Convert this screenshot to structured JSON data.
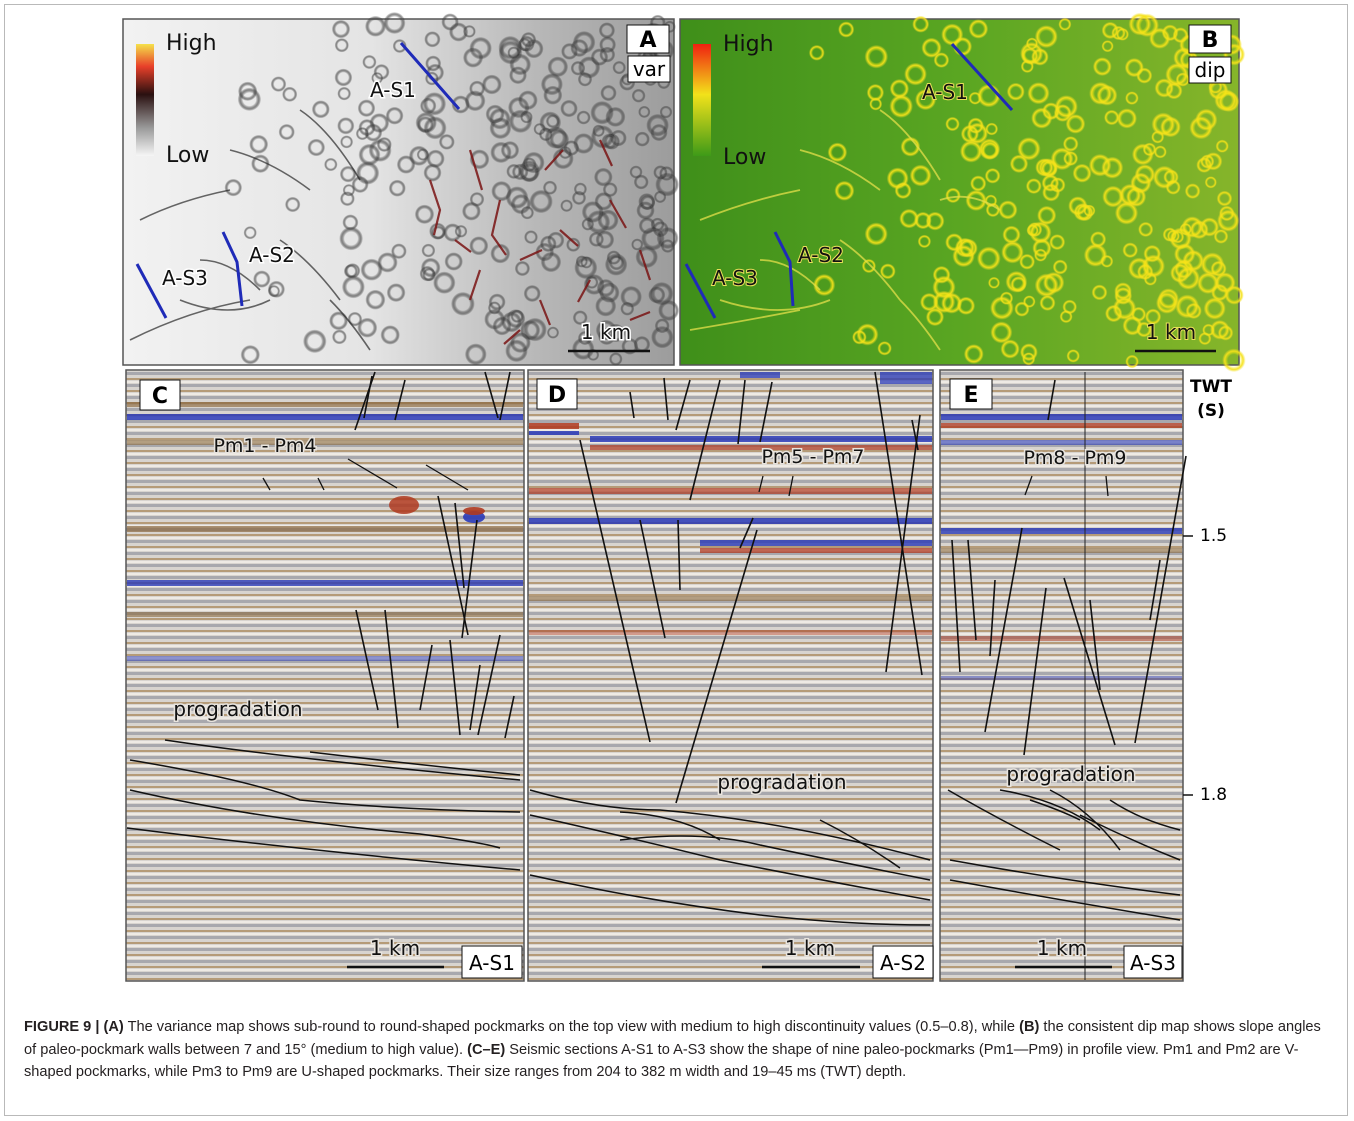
{
  "panels": {
    "A": {
      "letter": "A",
      "map_type": "var",
      "scale_high": "High",
      "scale_low": "Low",
      "scale_bar": "1 km",
      "labels": [
        "A-S1",
        "A-S2",
        "A-S3"
      ]
    },
    "B": {
      "letter": "B",
      "map_type": "dip",
      "scale_high": "High",
      "scale_low": "Low",
      "scale_bar": "1 km",
      "labels": [
        "A-S1",
        "A-S2",
        "A-S3"
      ]
    },
    "C": {
      "letter": "C",
      "pockmarks": "Pm1 - Pm4",
      "annotation": "progradation",
      "scale_bar": "1 km",
      "section": "A-S1"
    },
    "D": {
      "letter": "D",
      "pockmarks": "Pm5 - Pm7",
      "annotation": "progradation",
      "scale_bar": "1 km",
      "section": "A-S2"
    },
    "E": {
      "letter": "E",
      "pockmarks": "Pm8 - Pm9",
      "annotation": "progradation",
      "scale_bar": "1 km",
      "section": "A-S3"
    }
  },
  "twt_axis": {
    "label": "TWT",
    "unit": "(S)",
    "ticks": [
      "1.5",
      "1.8"
    ]
  },
  "colors": {
    "section_line": "#1f2bb8",
    "variance_high": "#e8d000",
    "dip_high": "#ff1a00",
    "dip_base": "#4a9a1e"
  },
  "caption": {
    "figure_label": "FIGURE 9 |",
    "parts": [
      {
        "bold": true,
        "text": "(A)"
      },
      {
        "bold": false,
        "text": " The variance map shows sub-round to round-shaped pockmarks on the top view with medium to high discontinuity values (0.5–0.8), while "
      },
      {
        "bold": true,
        "text": "(B)"
      },
      {
        "bold": false,
        "text": " the consistent dip map shows slope angles of paleo-pockmark walls between 7 and 15° (medium to high value). "
      },
      {
        "bold": true,
        "text": "(C–E)"
      },
      {
        "bold": false,
        "text": " Seismic sections A-S1 to A-S3 show the shape of nine paleo-pockmarks (Pm1—Pm9) in profile view. Pm1 and Pm2 are V-shaped pockmarks, while Pm3 to Pm9 are U-shaped pockmarks. Their size ranges from 204 to 382 m width and 19–45 ms (TWT) depth."
      }
    ]
  }
}
